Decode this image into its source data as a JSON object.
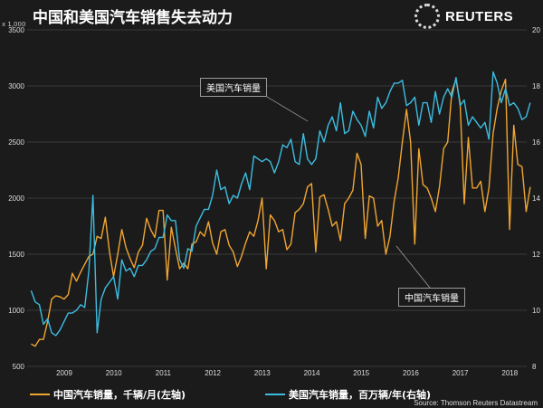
{
  "header": {
    "title": "中国和美国汽车销售失去动力",
    "brand": "REUTERS"
  },
  "source": "Source: Thomson Reuters Datastream",
  "colors": {
    "china": "#f0a531",
    "us": "#3cbde0",
    "grid": "#3a3a3a",
    "background": "#1b1b1c"
  },
  "chart_data": {
    "type": "line",
    "title": "中国和美国汽车销售失去动力",
    "left_axis": {
      "label": "x 1,000",
      "range": [
        500,
        3500
      ],
      "ticks": [
        500,
        1000,
        1500,
        2000,
        2500,
        3000,
        3500
      ]
    },
    "right_axis": {
      "range": [
        8,
        20
      ],
      "ticks": [
        8,
        10,
        12,
        14,
        16,
        18,
        20
      ]
    },
    "x_ticks": [
      "2009",
      "2010",
      "2011",
      "2012",
      "2013",
      "2014",
      "2015",
      "2016",
      "2017",
      "2018"
    ],
    "x_start": 2008.33,
    "x_step_months": 1,
    "grid": true,
    "legend_placement": "bottom",
    "series": [
      {
        "name": "中国汽车销量，千辆/月(左轴)",
        "axis": "left",
        "annotation": "中国汽车销量",
        "values": [
          700,
          680,
          740,
          740,
          900,
          1100,
          1130,
          1120,
          1100,
          1140,
          1330,
          1260,
          1340,
          1410,
          1480,
          1500,
          1660,
          1640,
          1830,
          1520,
          1300,
          1500,
          1720,
          1560,
          1460,
          1380,
          1520,
          1580,
          1820,
          1720,
          1650,
          1890,
          1890,
          1270,
          1740,
          1550,
          1370,
          1420,
          1370,
          1590,
          1610,
          1700,
          1660,
          1790,
          1600,
          1500,
          1700,
          1720,
          1580,
          1520,
          1390,
          1480,
          1600,
          1700,
          1660,
          1800,
          2000,
          1370,
          1850,
          1800,
          1700,
          1720,
          1540,
          1590,
          1870,
          1900,
          1950,
          2100,
          2130,
          1520,
          2010,
          2030,
          1900,
          1750,
          1790,
          1620,
          1950,
          2000,
          2070,
          2400,
          2300,
          1640,
          2020,
          2000,
          1750,
          1800,
          1500,
          1660,
          1970,
          2180,
          2500,
          2790,
          2500,
          1590,
          2440,
          2120,
          2090,
          2000,
          1880,
          2100,
          2440,
          2500,
          2950,
          3060,
          2850,
          1950,
          2540,
          2090,
          2090,
          2150,
          1880,
          2090,
          2580,
          2800,
          2960,
          3060,
          1720,
          2650,
          2300,
          2280,
          1880,
          2100
        ]
      },
      {
        "name": "美国汽车销量，百万辆/年(右轴)",
        "axis": "right",
        "annotation": "美国汽车销量",
        "values": [
          10.7,
          10.3,
          10.2,
          9.5,
          9.7,
          9.2,
          9.1,
          9.3,
          9.6,
          9.9,
          9.9,
          10.0,
          10.2,
          10.1,
          11.4,
          14.1,
          9.2,
          10.4,
          10.8,
          11.0,
          11.2,
          10.4,
          11.8,
          11.4,
          11.5,
          11.2,
          11.6,
          11.6,
          11.8,
          12.1,
          12.2,
          12.6,
          12.6,
          13.4,
          13.2,
          13.2,
          11.8,
          11.5,
          12.2,
          12.1,
          13.0,
          13.3,
          13.6,
          13.6,
          14.1,
          15.0,
          14.3,
          14.4,
          13.8,
          14.1,
          14.0,
          14.5,
          14.9,
          14.3,
          15.5,
          15.4,
          15.3,
          15.4,
          15.3,
          14.9,
          15.3,
          15.9,
          15.8,
          16.1,
          15.3,
          15.2,
          16.3,
          15.4,
          15.2,
          15.4,
          16.4,
          16.0,
          16.6,
          16.9,
          16.4,
          17.4,
          16.3,
          16.4,
          17.1,
          16.8,
          16.6,
          16.2,
          17.1,
          16.5,
          17.6,
          17.2,
          17.4,
          17.8,
          18.1,
          18.1,
          18.2,
          17.3,
          17.4,
          17.6,
          16.6,
          17.4,
          17.4,
          16.7,
          17.8,
          17.0,
          17.6,
          17.9,
          17.6,
          18.3,
          17.3,
          17.5,
          16.6,
          16.9,
          16.7,
          16.5,
          16.7,
          16.1,
          18.5,
          18.1,
          17.4,
          17.9,
          17.3,
          17.4,
          17.2,
          16.8,
          16.9,
          17.4
        ]
      }
    ]
  }
}
